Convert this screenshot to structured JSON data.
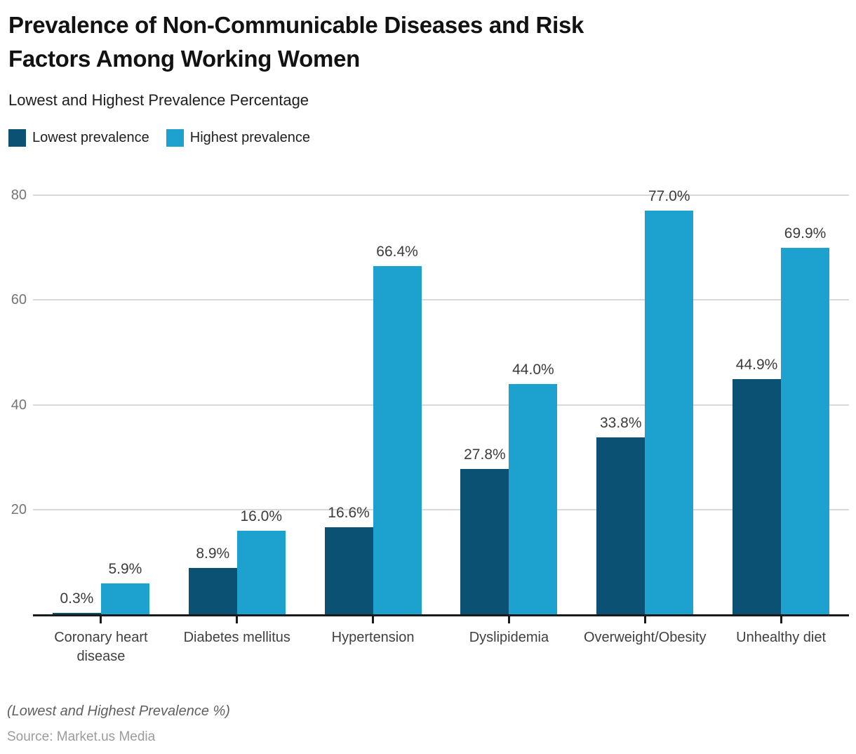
{
  "header": {
    "title_lines": [
      "Prevalence of Non-Communicable Diseases and Risk",
      "Factors Among Working Women"
    ],
    "subtitle": "Lowest and Highest Prevalence Percentage"
  },
  "chart_data": {
    "type": "bar",
    "categories": [
      "Coronary heart disease",
      "Diabetes mellitus",
      "Hypertension",
      "Dyslipidemia",
      "Overweight/Obesity",
      "Unhealthy diet"
    ],
    "series": [
      {
        "name": "Lowest prevalence",
        "color": "#0a5174",
        "values": [
          0.3,
          8.9,
          16.6,
          27.8,
          33.8,
          44.9
        ]
      },
      {
        "name": "Highest prevalence",
        "color": "#1da2cf",
        "values": [
          5.9,
          16.0,
          66.4,
          44.0,
          77.0,
          69.9
        ]
      }
    ],
    "value_labels": [
      [
        "0.3%",
        "8.9%",
        "16.6%",
        "27.8%",
        "33.8%",
        "44.9%"
      ],
      [
        "5.9%",
        "16.0%",
        "66.4%",
        "44.0%",
        "77.0%",
        "69.9%"
      ]
    ],
    "yticks": [
      20,
      40,
      60,
      80
    ],
    "ylim": [
      0,
      80
    ],
    "grid": true,
    "legend_position": "top-left",
    "xlabel": "",
    "ylabel": ""
  },
  "colors": {
    "gridline": "#d9d9d9",
    "axis": "#1a1a1a"
  },
  "footer": {
    "note": "(Lowest and Highest Prevalence %)",
    "source": "Source: Market.us Media"
  }
}
